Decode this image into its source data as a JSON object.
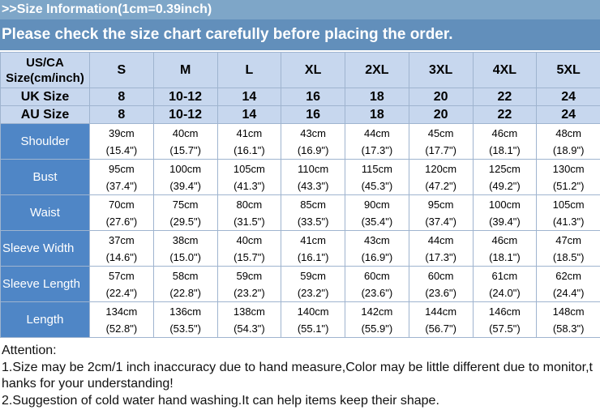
{
  "header": {
    "title": ">>Size Information(1cm=0.39inch)",
    "subtitle": "Please check the size chart carefully before placing the order."
  },
  "table": {
    "corner_label_line1": "US/CA",
    "corner_label_line2": "Size(cm/inch)",
    "sizes": [
      "S",
      "M",
      "L",
      "XL",
      "2XL",
      "3XL",
      "4XL",
      "5XL"
    ],
    "uk": {
      "label": "UK Size",
      "values": [
        "8",
        "10-12",
        "14",
        "16",
        "18",
        "20",
        "22",
        "24"
      ]
    },
    "au": {
      "label": "AU  Size",
      "values": [
        "8",
        "10-12",
        "14",
        "16",
        "18",
        "20",
        "22",
        "24"
      ]
    },
    "measurements": [
      {
        "label": "Shoulder",
        "cm": [
          "39cm",
          "40cm",
          "41cm",
          "43cm",
          "44cm",
          "45cm",
          "46cm",
          "48cm"
        ],
        "inch": [
          "(15.4\")",
          "(15.7\")",
          "(16.1\")",
          "(16.9\")",
          "(17.3\")",
          "(17.7\")",
          "(18.1\")",
          "(18.9\")"
        ]
      },
      {
        "label": "Bust",
        "cm": [
          "95cm",
          "100cm",
          "105cm",
          "110cm",
          "115cm",
          "120cm",
          "125cm",
          "130cm"
        ],
        "inch": [
          "(37.4\")",
          "(39.4\")",
          "(41.3\")",
          "(43.3\")",
          "(45.3\")",
          "(47.2\")",
          "(49.2\")",
          "(51.2\")"
        ]
      },
      {
        "label": "Waist",
        "cm": [
          "70cm",
          "75cm",
          "80cm",
          "85cm",
          "90cm",
          "95cm",
          "100cm",
          "105cm"
        ],
        "inch": [
          "(27.6\")",
          "(29.5\")",
          "(31.5\")",
          "(33.5\")",
          "(35.4\")",
          "(37.4\")",
          "(39.4\")",
          "(41.3\")"
        ]
      },
      {
        "label": "Sleeve Width",
        "cm": [
          "37cm",
          "38cm",
          "40cm",
          "41cm",
          "43cm",
          "44cm",
          "46cm",
          "47cm"
        ],
        "inch": [
          "(14.6\")",
          "(15.0\")",
          "(15.7\")",
          "(16.1\")",
          "(16.9\")",
          "(17.3\")",
          "(18.1\")",
          "(18.5\")"
        ]
      },
      {
        "label": "Sleeve Length",
        "cm": [
          "57cm",
          "58cm",
          "59cm",
          "59cm",
          "60cm",
          "60cm",
          "61cm",
          "62cm"
        ],
        "inch": [
          "(22.4\")",
          "(22.8\")",
          "(23.2\")",
          "(23.2\")",
          "(23.6\")",
          "(23.6\")",
          "(24.0\")",
          "(24.4\")"
        ]
      },
      {
        "label": "Length",
        "cm": [
          "134cm",
          "136cm",
          "138cm",
          "140cm",
          "142cm",
          "144cm",
          "146cm",
          "148cm"
        ],
        "inch": [
          "(52.8\")",
          "(53.5\")",
          "(54.3\")",
          "(55.1\")",
          "(55.9\")",
          "(56.7\")",
          "(57.5\")",
          "(58.3\")"
        ]
      }
    ]
  },
  "notes": {
    "title": "Attention:",
    "line1": "1.Size may be 2cm/1 inch inaccuracy due to hand measure,Color may be little different due to monitor,t",
    "line2": "hanks for your understanding!",
    "line3": "2.Suggestion of cold water hand washing.It can help items keep their shape."
  },
  "colors": {
    "title_bar": "#7ea6c8",
    "subtitle_bar": "#628fbb",
    "header_cells": "#c7d7ee",
    "label_cells": "#4f86c6"
  }
}
